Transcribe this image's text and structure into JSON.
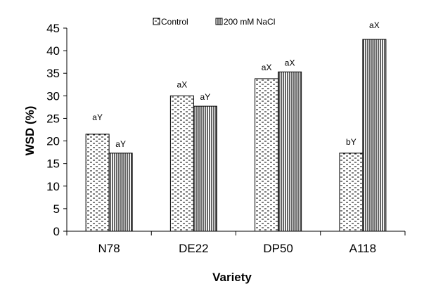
{
  "chart_data": {
    "type": "bar",
    "title": "",
    "xlabel": "Variety",
    "ylabel": "WSD (%)",
    "ylim": [
      0,
      45
    ],
    "yticks": [
      0,
      5,
      10,
      15,
      20,
      25,
      30,
      35,
      40,
      45
    ],
    "categories": [
      "N78",
      "DE22",
      "DP50",
      "A118"
    ],
    "series": [
      {
        "name": "Control",
        "pattern": "dotted",
        "values": [
          21.5,
          30,
          33.8,
          17.3
        ],
        "labels": [
          "aY",
          "aX",
          "aX",
          "bY"
        ]
      },
      {
        "name": "200 mM NaCl",
        "pattern": "vertical-stripes",
        "values": [
          17.3,
          27.7,
          35.3,
          42.5
        ],
        "labels": [
          "aY",
          "aY",
          "aX",
          "aX"
        ]
      }
    ],
    "legend_position": "top",
    "colors": {
      "bar_fill": "#ffffff",
      "bar_stroke": "#000000",
      "axis": "#000000"
    }
  }
}
